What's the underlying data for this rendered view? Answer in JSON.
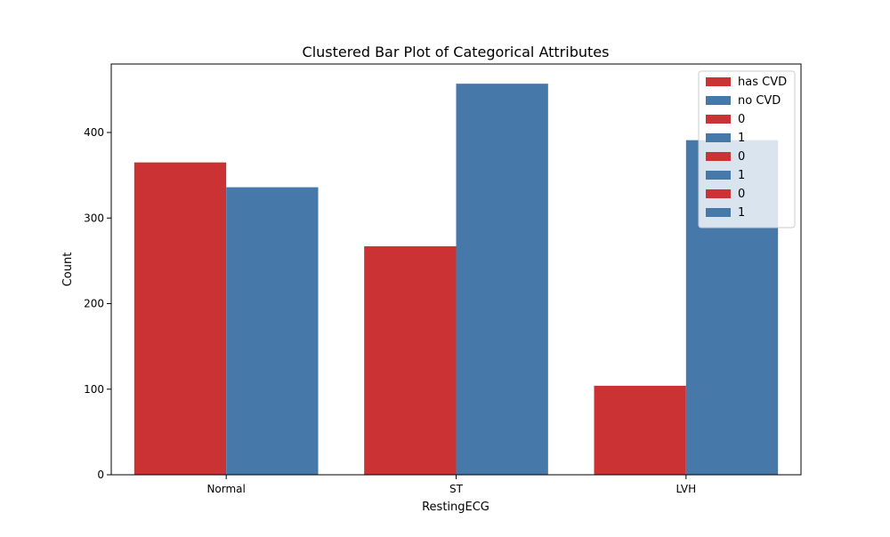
{
  "chart_data": {
    "type": "bar",
    "title": "Clustered Bar Plot of Categorical Attributes",
    "xlabel": "RestingECG",
    "ylabel": "Count",
    "categories": [
      "Normal",
      "ST",
      "LVH"
    ],
    "ylim": [
      0,
      480
    ],
    "yticks": [
      0,
      100,
      200,
      300,
      400
    ],
    "grid": false,
    "legend_position": "top-right",
    "series": [
      {
        "name": "has CVD",
        "color": "#cb3234",
        "values": [
          365,
          267,
          104
        ]
      },
      {
        "name": "no CVD",
        "color": "#4679aa",
        "values": [
          336,
          457,
          391
        ]
      }
    ],
    "legend_entries": [
      {
        "label": "has CVD",
        "color": "#cb3234"
      },
      {
        "label": "no CVD",
        "color": "#4679aa"
      },
      {
        "label": "0",
        "color": "#cb3234"
      },
      {
        "label": "1",
        "color": "#4679aa"
      },
      {
        "label": "0",
        "color": "#cb3234"
      },
      {
        "label": "1",
        "color": "#4679aa"
      },
      {
        "label": "0",
        "color": "#cb3234"
      },
      {
        "label": "1",
        "color": "#4679aa"
      }
    ]
  }
}
